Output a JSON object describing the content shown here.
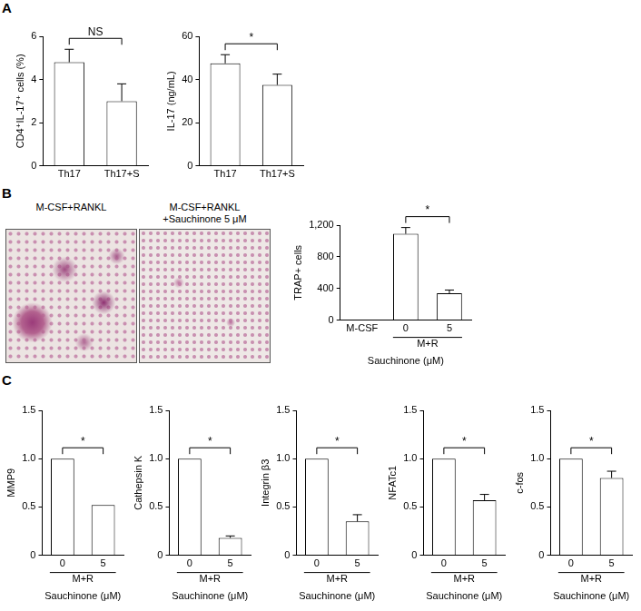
{
  "panel_labels": [
    "A",
    "B",
    "C"
  ],
  "micrographs": [
    {
      "title": "M-CSF+RANKL"
    },
    {
      "title": "M-CSF+RANKL +Sauchinone 5 μM"
    }
  ],
  "chart_data": [
    {
      "type": "bar",
      "ylabel": "CD4⁺IL-17⁺ cells (%)",
      "categories": [
        "Th17",
        "Th17+S"
      ],
      "values": [
        4.8,
        3.0
      ],
      "errors": [
        0.6,
        0.8
      ],
      "color": "#ffffff",
      "ylim": [
        0,
        6
      ],
      "yticks": [
        0,
        2,
        4,
        6
      ],
      "grid": false,
      "significance": {
        "label": "NS",
        "between": [
          "Th17",
          "Th17+S"
        ]
      }
    },
    {
      "type": "bar",
      "ylabel": "IL-17 (ng/mL)",
      "categories": [
        "Th17",
        "Th17+S"
      ],
      "values": [
        47.5,
        37.5
      ],
      "errors": [
        4,
        5
      ],
      "color": "#ffffff",
      "ylim": [
        0,
        60
      ],
      "yticks": [
        0,
        20,
        40,
        60
      ],
      "grid": false,
      "significance": {
        "label": "*",
        "between": [
          "Th17",
          "Th17+S"
        ]
      }
    },
    {
      "type": "bar",
      "ylabel": "TRAP+ cells",
      "xlabel": "Sauchinone (μM)",
      "categories": [
        "M-CSF",
        "0",
        "5"
      ],
      "values": [
        0,
        1090,
        340
      ],
      "errors": [
        null,
        80,
        40
      ],
      "color": "#ffffff",
      "ylim": [
        0,
        1200
      ],
      "yticks": [
        0,
        400,
        800,
        {
          "value": 1200,
          "label": "1,200"
        }
      ],
      "grid": false,
      "group": {
        "label": "M+R",
        "categories": [
          "0",
          "5"
        ]
      },
      "significance": {
        "label": "*",
        "between": [
          "0",
          "5"
        ]
      }
    },
    {
      "type": "bar",
      "ylabel": "MMP9",
      "xlabel": "Sauchinone (μM)",
      "categories": [
        "0",
        "5"
      ],
      "values": [
        1.0,
        0.52
      ],
      "errors": [
        null,
        null
      ],
      "color": "#ffffff",
      "ylim": [
        0,
        1.5
      ],
      "yticks": [
        0,
        0.5,
        {
          "value": 1,
          "label": "1.0"
        },
        1.5
      ],
      "grid": false,
      "group": {
        "label": "M+R",
        "categories": [
          "0",
          "5"
        ]
      },
      "significance": {
        "label": "*",
        "between": [
          "0",
          "5"
        ]
      }
    },
    {
      "type": "bar",
      "ylabel": "Cathepsin K",
      "xlabel": "Sauchinone (μM)",
      "categories": [
        "0",
        "5"
      ],
      "values": [
        1.0,
        0.18
      ],
      "errors": [
        null,
        0.02
      ],
      "color": "#ffffff",
      "ylim": [
        0,
        1.5
      ],
      "yticks": [
        0,
        0.5,
        {
          "value": 1,
          "label": "1.0"
        },
        1.5
      ],
      "grid": false,
      "group": {
        "label": "M+R",
        "categories": [
          "0",
          "5"
        ]
      },
      "significance": {
        "label": "*",
        "between": [
          "0",
          "5"
        ]
      }
    },
    {
      "type": "bar",
      "ylabel": "Integrin β3",
      "xlabel": "Sauchinone (μM)",
      "categories": [
        "0",
        "5"
      ],
      "values": [
        1.0,
        0.35
      ],
      "errors": [
        null,
        0.07
      ],
      "color": "#ffffff",
      "ylim": [
        0,
        1.5
      ],
      "yticks": [
        0,
        0.5,
        {
          "value": 1,
          "label": "1.0"
        },
        1.5
      ],
      "grid": false,
      "group": {
        "label": "M+R",
        "categories": [
          "0",
          "5"
        ]
      },
      "significance": {
        "label": "*",
        "between": [
          "0",
          "5"
        ]
      }
    },
    {
      "type": "bar",
      "ylabel": "NFATc1",
      "xlabel": "Sauchinone (μM)",
      "categories": [
        "0",
        "5"
      ],
      "values": [
        1.0,
        0.57
      ],
      "errors": [
        null,
        0.06
      ],
      "color": "#ffffff",
      "ylim": [
        0,
        1.5
      ],
      "yticks": [
        0,
        0.5,
        {
          "value": 1,
          "label": "1.0"
        },
        1.5
      ],
      "grid": false,
      "group": {
        "label": "M+R",
        "categories": [
          "0",
          "5"
        ]
      },
      "significance": {
        "label": "*",
        "between": [
          "0",
          "5"
        ]
      }
    },
    {
      "type": "bar",
      "ylabel": "c-fos",
      "xlabel": "Sauchinone (μM)",
      "categories": [
        "0",
        "5"
      ],
      "values": [
        1.0,
        0.8
      ],
      "errors": [
        null,
        0.07
      ],
      "color": "#ffffff",
      "ylim": [
        0,
        1.5
      ],
      "yticks": [
        0,
        0.5,
        {
          "value": 1,
          "label": "1.0"
        },
        1.5
      ],
      "grid": false,
      "group": {
        "label": "M+R",
        "categories": [
          "0",
          "5"
        ]
      },
      "significance": {
        "label": "*",
        "between": [
          "0",
          "5"
        ]
      }
    }
  ]
}
